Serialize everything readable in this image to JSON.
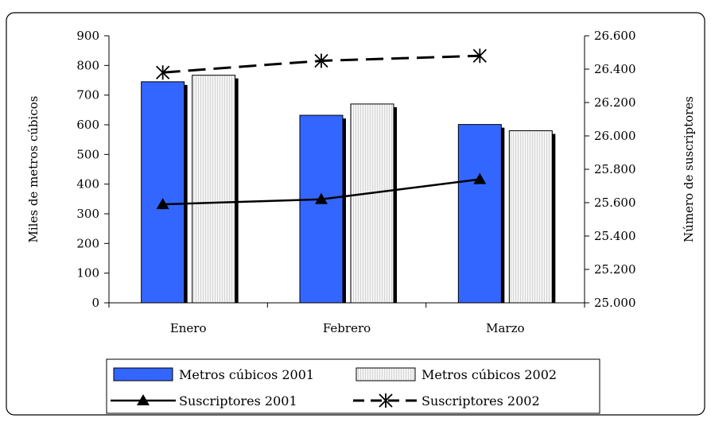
{
  "chart_data": {
    "type": "bar",
    "categories": [
      "Enero",
      "Febrero",
      "Marzo"
    ],
    "series": [
      {
        "name": "Metros cúbicos 2001",
        "kind": "bar",
        "axis": "left",
        "values": [
          745,
          632,
          601
        ],
        "color": "#3366ff"
      },
      {
        "name": "Metros cúbicos 2002",
        "kind": "bar",
        "axis": "left",
        "values": [
          767,
          670,
          580
        ],
        "color": "#f2f2f2"
      },
      {
        "name": "Suscriptores 2001",
        "kind": "line",
        "axis": "right",
        "values": [
          25590,
          25620,
          25740
        ],
        "color": "#000000",
        "marker": "triangle"
      },
      {
        "name": "Suscriptores 2002",
        "kind": "line",
        "axis": "right",
        "values": [
          26380,
          26450,
          26480
        ],
        "color": "#000000",
        "marker": "asterisk",
        "dashed": true
      }
    ],
    "ylabel": "Miles de metros cúbicos",
    "y2label": "Número de suscriptores",
    "ylim": [
      0,
      900
    ],
    "y2lim": [
      25000,
      26600
    ],
    "yticks": [
      "0",
      "100",
      "200",
      "300",
      "400",
      "500",
      "600",
      "700",
      "800",
      "900"
    ],
    "y2ticks": [
      "25.000",
      "25.200",
      "25.400",
      "25.600",
      "25.800",
      "26.000",
      "26.200",
      "26.400",
      "26.600"
    ],
    "grid": false,
    "legend": "bottom"
  }
}
